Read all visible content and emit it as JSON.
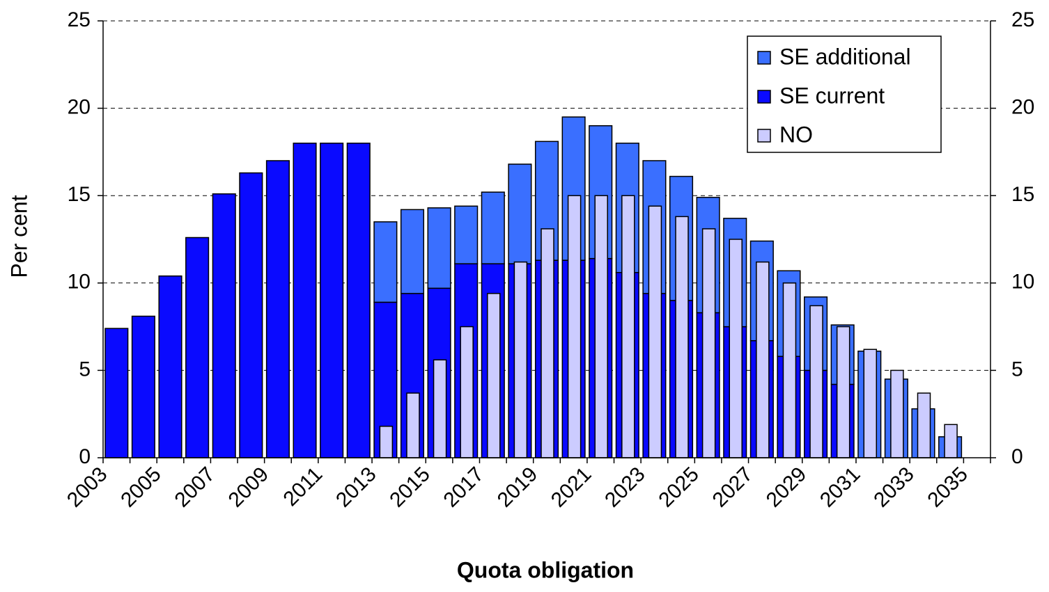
{
  "chart_data": {
    "type": "bar",
    "stacked": true,
    "x_label": "Quota obligation",
    "y_label": "Per cent",
    "categories": [
      "2003",
      null,
      "2005",
      null,
      "2007",
      null,
      "2009",
      null,
      "2011",
      null,
      "2013",
      null,
      "2015",
      null,
      "2017",
      null,
      "2019",
      null,
      "2021",
      null,
      "2023",
      null,
      "2025",
      null,
      "2027",
      null,
      "2029",
      null,
      "2031",
      null,
      "2033",
      null,
      "2035"
    ],
    "series": [
      {
        "name": "SE current",
        "color": "#0a0aff",
        "stack": true,
        "values": [
          7.4,
          8.1,
          10.4,
          12.6,
          15.1,
          16.3,
          17.0,
          18.0,
          18.0,
          18.0,
          8.9,
          9.4,
          9.7,
          11.1,
          11.1,
          11.1,
          11.3,
          11.3,
          11.4,
          10.6,
          9.4,
          9.0,
          8.3,
          7.5,
          6.7,
          5.8,
          5.0,
          4.2,
          null,
          null,
          null,
          null,
          null
        ]
      },
      {
        "name": "SE additional",
        "color": "#3a6fff",
        "stack": true,
        "values": [
          null,
          null,
          null,
          null,
          null,
          null,
          null,
          null,
          null,
          null,
          4.6,
          4.8,
          4.6,
          3.3,
          4.1,
          5.7,
          6.8,
          8.2,
          7.6,
          7.4,
          7.6,
          7.1,
          6.6,
          6.2,
          5.7,
          4.9,
          4.2,
          3.4,
          6.1,
          4.5,
          2.8,
          1.2,
          null
        ]
      },
      {
        "name": "NO",
        "color": "#ccccff",
        "stack": false,
        "values": [
          null,
          null,
          null,
          null,
          null,
          null,
          null,
          null,
          null,
          null,
          1.8,
          3.7,
          5.6,
          7.5,
          9.4,
          11.2,
          13.1,
          15.0,
          15.0,
          15.0,
          14.4,
          13.8,
          13.1,
          12.5,
          11.2,
          10.0,
          8.7,
          7.5,
          6.2,
          5.0,
          3.7,
          1.9,
          null
        ]
      }
    ],
    "ylim": [
      0,
      25
    ],
    "yticks": [
      0,
      5,
      10,
      15,
      20,
      25
    ],
    "y2lim": [
      0,
      25
    ],
    "y2ticks": [
      0,
      5,
      10,
      15,
      20,
      25
    ],
    "grid": true,
    "legend": "upper right"
  }
}
